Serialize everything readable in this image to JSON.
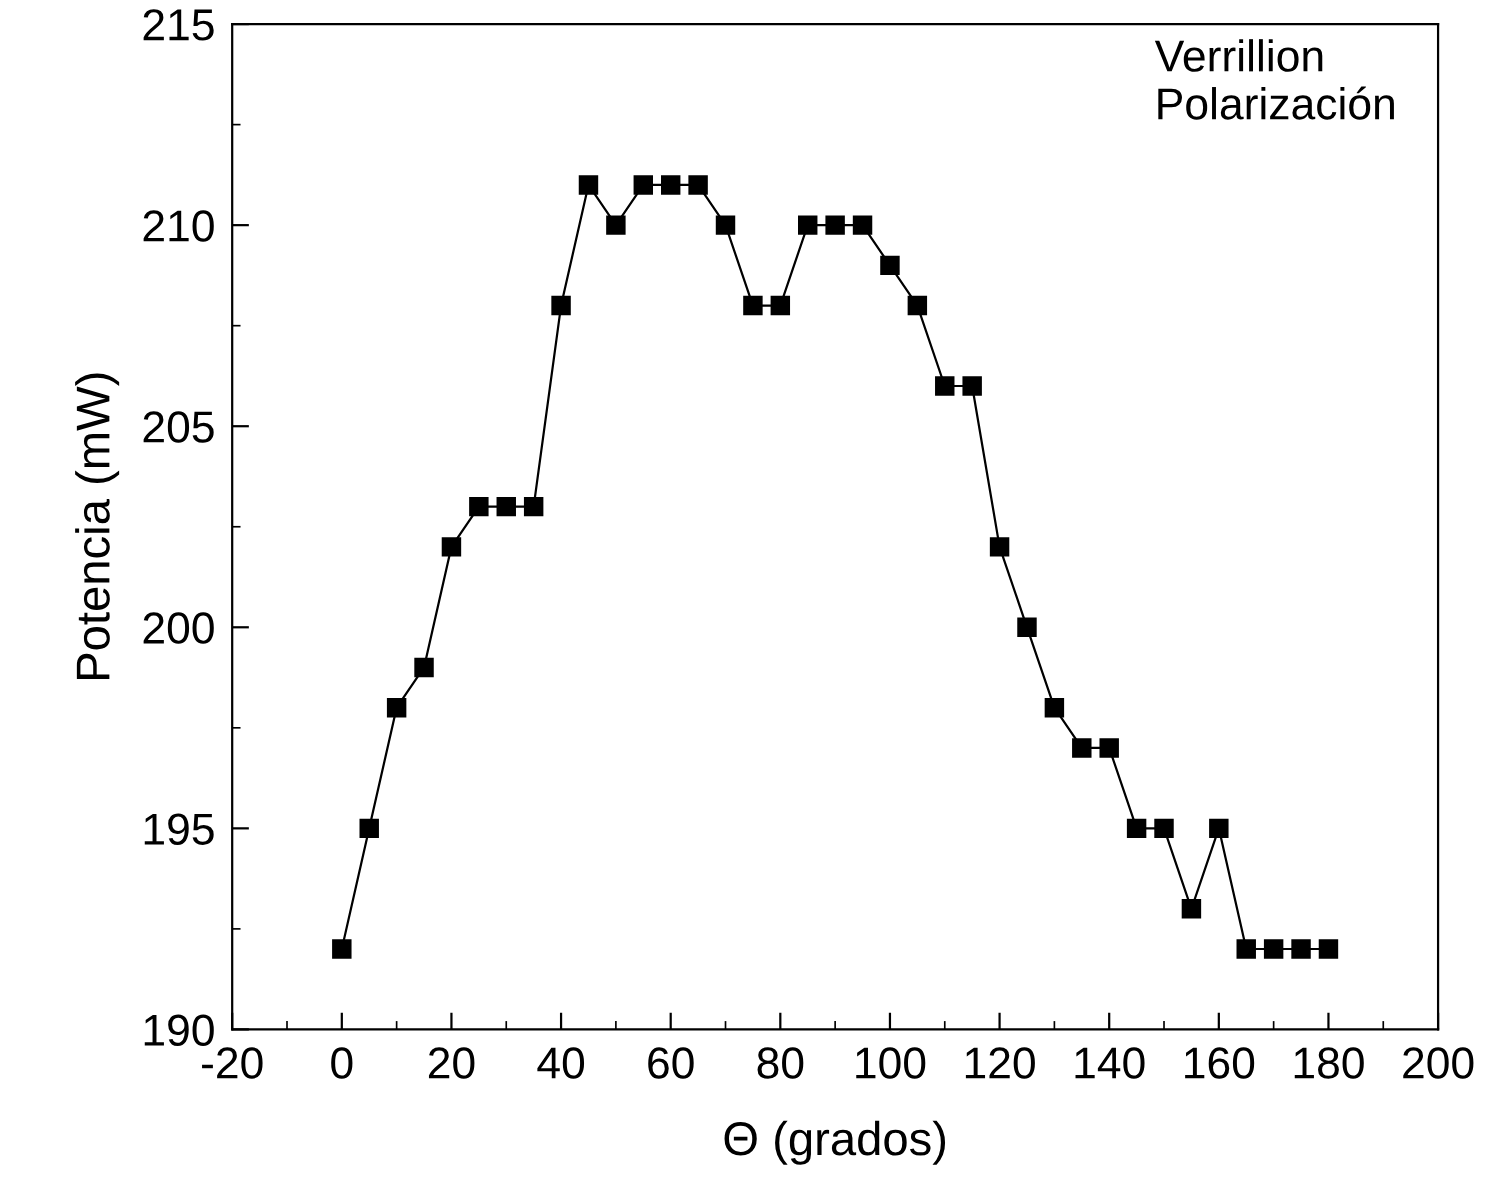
{
  "chart_data": {
    "type": "line",
    "xlabel": "Θ (grados)",
    "ylabel": "Potencia (mW)",
    "annotations": [
      "Verrillion\nPolarización"
    ],
    "x": [
      0,
      5,
      10,
      15,
      20,
      25,
      30,
      35,
      40,
      45,
      50,
      55,
      60,
      65,
      70,
      75,
      80,
      85,
      90,
      95,
      100,
      105,
      110,
      115,
      120,
      125,
      130,
      135,
      140,
      145,
      150,
      155,
      160,
      165,
      170,
      175,
      180
    ],
    "series": [
      {
        "color": "#000000",
        "values": [
          192,
          195,
          198,
          199,
          202,
          203,
          203,
          203,
          208,
          211,
          210,
          211,
          211,
          211,
          210,
          208,
          208,
          210,
          210,
          210,
          209,
          208,
          206,
          206,
          202,
          200,
          198,
          197,
          197,
          195,
          195,
          193,
          195,
          192,
          192,
          192,
          192
        ]
      }
    ],
    "xlim": [
      -20,
      200
    ],
    "xticks": [
      -20,
      0,
      20,
      40,
      60,
      80,
      100,
      120,
      140,
      160,
      180,
      200
    ],
    "ylim": [
      190,
      215
    ],
    "yticks": [
      190,
      195,
      200,
      205,
      210,
      215
    ],
    "marker": "square",
    "line_style": "solid",
    "grid": false,
    "legend": false
  }
}
